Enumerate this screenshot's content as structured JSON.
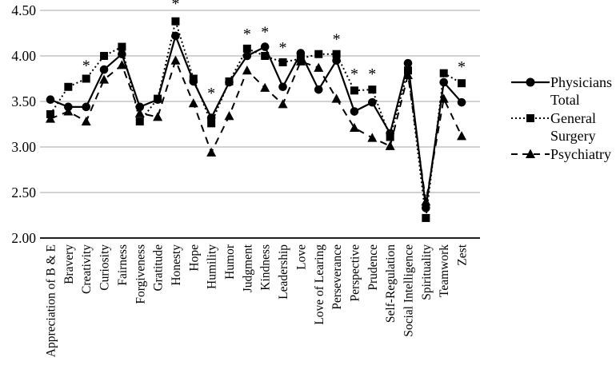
{
  "chart_data": {
    "type": "line",
    "title": "",
    "xlabel": "",
    "ylabel": "",
    "categories": [
      "Appreciation of B & E",
      "Bravery",
      "Creativity",
      "Curiosity",
      "Fairness",
      "Forgiveness",
      "Gratitude",
      "Honesty",
      "Hope",
      "Humility",
      "Humor",
      "Judgment",
      "Kindness",
      "Leadership",
      "Love",
      "Love of Learing",
      "Perseverance",
      "Perspective",
      "Prudence",
      "Self-Regulation",
      "Social Intelligence",
      "Spirituality",
      "Teamwork",
      "Zest"
    ],
    "series": [
      {
        "name": "Physicians Total",
        "marker": "circle",
        "line_style": "solid",
        "color": "#000000",
        "values": [
          3.52,
          3.44,
          3.44,
          3.85,
          4.02,
          3.44,
          3.52,
          4.22,
          3.72,
          3.32,
          3.71,
          4.0,
          4.1,
          3.66,
          4.03,
          3.63,
          3.95,
          3.39,
          3.49,
          3.15,
          3.92,
          2.33,
          3.71,
          3.49
        ]
      },
      {
        "name": "General Surgery",
        "marker": "square",
        "line_style": "dotted",
        "color": "#000000",
        "values": [
          3.36,
          3.66,
          3.75,
          4.0,
          4.1,
          3.28,
          3.53,
          4.38,
          3.75,
          3.26,
          3.72,
          4.08,
          4.0,
          3.93,
          3.97,
          4.02,
          4.02,
          3.62,
          3.63,
          3.11,
          3.84,
          2.22,
          3.81,
          3.7
        ]
      },
      {
        "name": "Psychiatry",
        "marker": "triangle",
        "line_style": "dashed",
        "color": "#000000",
        "values": [
          3.31,
          3.39,
          3.28,
          3.74,
          3.9,
          3.37,
          3.33,
          3.95,
          3.48,
          2.94,
          3.34,
          3.84,
          3.65,
          3.47,
          3.94,
          3.87,
          3.53,
          3.21,
          3.1,
          3.01,
          3.79,
          2.4,
          3.53,
          3.12
        ]
      }
    ],
    "annotations": {
      "symbol": "*",
      "points": [
        {
          "category": "Creativity",
          "value": 3.88
        },
        {
          "category": "Honesty",
          "value": 4.56
        },
        {
          "category": "Humility",
          "value": 3.58
        },
        {
          "category": "Judgment",
          "value": 4.23
        },
        {
          "category": "Kindness",
          "value": 4.25
        },
        {
          "category": "Leadership",
          "value": 4.08
        },
        {
          "category": "Perseverance",
          "value": 4.17
        },
        {
          "category": "Perspective",
          "value": 3.79
        },
        {
          "category": "Prudence",
          "value": 3.79
        },
        {
          "category": "Zest",
          "value": 3.87
        }
      ]
    },
    "ylim": [
      2.0,
      4.5
    ],
    "yticks": [
      {
        "value": 2.0,
        "label": "2.00"
      },
      {
        "value": 2.5,
        "label": "2.50"
      },
      {
        "value": 3.0,
        "label": "3.00"
      },
      {
        "value": 3.5,
        "label": "3.50"
      },
      {
        "value": 4.0,
        "label": "4.00"
      },
      {
        "value": 4.5,
        "label": "4.50"
      }
    ],
    "grid": true,
    "gridline_color": "#a6a6a6",
    "axis_color": "#000000",
    "legend_position": "right"
  },
  "legend": {
    "entries": [
      {
        "line1": "Physicians",
        "line2": "Total"
      },
      {
        "line1": "General",
        "line2": "Surgery"
      },
      {
        "line1": "Psychiatry",
        "line2": ""
      }
    ]
  }
}
